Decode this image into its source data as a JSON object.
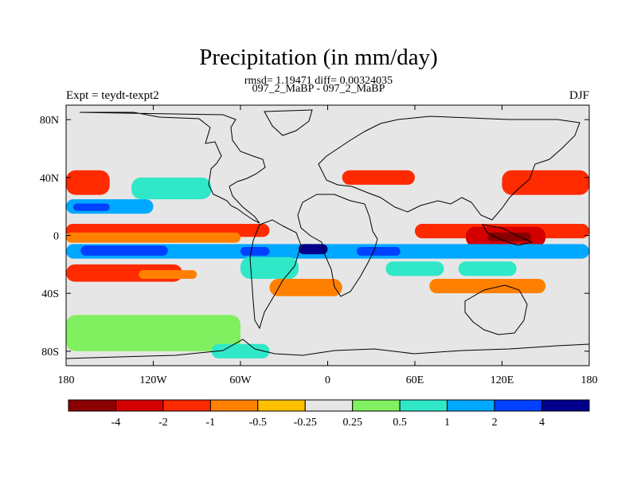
{
  "header": {
    "title": "Precipitation (in mm/day)",
    "subtitle": "rmsd= 1.19471 diff= 0.00324035",
    "case": "097_2_MaBP - 097_2_MaBP",
    "left_label": "Expt = teydt-texpt2",
    "right_label": "DJF"
  },
  "chart_data": {
    "type": "heatmap",
    "title": "Precipitation (in mm/day)",
    "subtitle": "rmsd= 1.19471 diff= 0.00324035",
    "xlabel": "",
    "ylabel": "",
    "xlim": [
      -180,
      180
    ],
    "ylim": [
      -90,
      90
    ],
    "x_ticks": [
      {
        "value": -180,
        "label": "180"
      },
      {
        "value": -120,
        "label": "120W"
      },
      {
        "value": -60,
        "label": "60W"
      },
      {
        "value": 0,
        "label": "0"
      },
      {
        "value": 60,
        "label": "60E"
      },
      {
        "value": 120,
        "label": "120E"
      },
      {
        "value": 180,
        "label": "180"
      }
    ],
    "y_ticks": [
      {
        "value": 80,
        "label": "80N"
      },
      {
        "value": 40,
        "label": "40N"
      },
      {
        "value": 0,
        "label": "0"
      },
      {
        "value": -40,
        "label": "40S"
      },
      {
        "value": -80,
        "label": "80S"
      }
    ],
    "colorbar": {
      "levels": [
        -4,
        -2,
        -1,
        -0.5,
        -0.25,
        0.25,
        0.5,
        1,
        2,
        4
      ],
      "labels": [
        "-4",
        "-2",
        "-1",
        "-0.5",
        "-0.25",
        "0.25",
        "0.5",
        "1",
        "2",
        "4"
      ],
      "colors": [
        "#8b0000",
        "#d40000",
        "#ff2a00",
        "#ff8000",
        "#ffc000",
        "#e6e6e6",
        "#80f060",
        "#30e8c8",
        "#00a8ff",
        "#0040ff",
        "#00008b"
      ]
    },
    "regions": [
      {
        "lon": [
          -180,
          180
        ],
        "lat": [
          -90,
          90
        ],
        "value": 0
      },
      {
        "lon": [
          -180,
          -40
        ],
        "lat": [
          -1,
          8
        ],
        "value": -1.5
      },
      {
        "lon": [
          -180,
          -60
        ],
        "lat": [
          -5,
          2
        ],
        "value": -0.7
      },
      {
        "lon": [
          60,
          180
        ],
        "lat": [
          -2,
          8
        ],
        "value": -1.5
      },
      {
        "lon": [
          95,
          150
        ],
        "lat": [
          -8,
          6
        ],
        "value": -3
      },
      {
        "lon": [
          110,
          140
        ],
        "lat": [
          -4,
          2
        ],
        "value": -5
      },
      {
        "lon": [
          -180,
          180
        ],
        "lat": [
          -16,
          -6
        ],
        "value": 1.5
      },
      {
        "lon": [
          -170,
          -110
        ],
        "lat": [
          -14,
          -7
        ],
        "value": 2.5
      },
      {
        "lon": [
          -60,
          -40
        ],
        "lat": [
          -14,
          -8
        ],
        "value": 3
      },
      {
        "lon": [
          -20,
          0
        ],
        "lat": [
          -13,
          -6
        ],
        "value": 4.5
      },
      {
        "lon": [
          20,
          50
        ],
        "lat": [
          -14,
          -8
        ],
        "value": 2.5
      },
      {
        "lon": [
          -180,
          -100
        ],
        "lat": [
          -32,
          -20
        ],
        "value": -1.5
      },
      {
        "lon": [
          -130,
          -90
        ],
        "lat": [
          -30,
          -24
        ],
        "value": -0.7
      },
      {
        "lon": [
          -40,
          10
        ],
        "lat": [
          -42,
          -30
        ],
        "value": -0.7
      },
      {
        "lon": [
          70,
          150
        ],
        "lat": [
          -40,
          -30
        ],
        "value": -0.7
      },
      {
        "lon": [
          -180,
          -150
        ],
        "lat": [
          28,
          45
        ],
        "value": -1.5
      },
      {
        "lon": [
          -180,
          -120
        ],
        "lat": [
          15,
          25
        ],
        "value": 1.5
      },
      {
        "lon": [
          -175,
          -150
        ],
        "lat": [
          17,
          22
        ],
        "value": 3
      },
      {
        "lon": [
          -135,
          -80
        ],
        "lat": [
          25,
          40
        ],
        "value": 0.7
      },
      {
        "lon": [
          10,
          60
        ],
        "lat": [
          35,
          45
        ],
        "value": -1.5
      },
      {
        "lon": [
          120,
          180
        ],
        "lat": [
          28,
          45
        ],
        "value": -1.5
      },
      {
        "lon": [
          -60,
          -20
        ],
        "lat": [
          -30,
          -15
        ],
        "value": 0.7
      },
      {
        "lon": [
          40,
          80
        ],
        "lat": [
          -28,
          -18
        ],
        "value": 0.7
      },
      {
        "lon": [
          90,
          130
        ],
        "lat": [
          -28,
          -18
        ],
        "value": 0.7
      },
      {
        "lon": [
          -180,
          -60
        ],
        "lat": [
          -80,
          -55
        ],
        "value": 0.3
      },
      {
        "lon": [
          -80,
          -40
        ],
        "lat": [
          -85,
          -75
        ],
        "value": 0.7
      }
    ]
  }
}
